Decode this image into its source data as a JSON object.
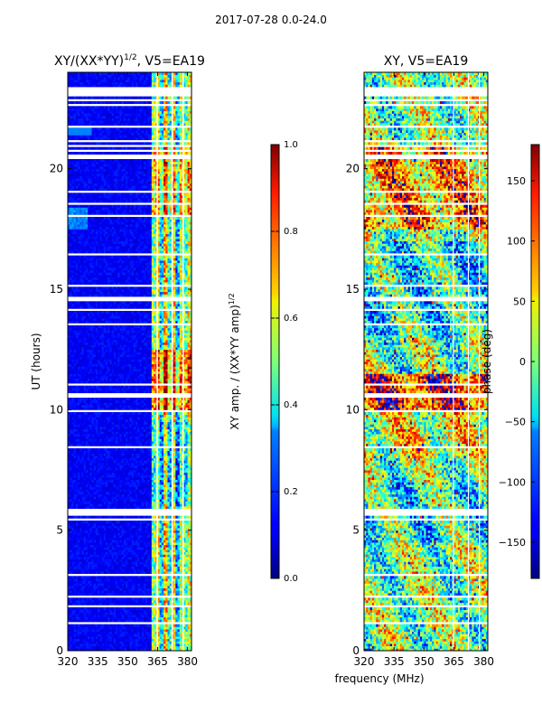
{
  "suptitle": "2017-07-28 0.0-24.0",
  "xlabel_common": "frequency (MHz)",
  "chart_data": [
    {
      "type": "heatmap",
      "title": "XY/(XX*YY)",
      "title_exp": "1/2",
      "title_suffix": ", V5=EA19",
      "xlabel": "",
      "ylabel": "UT (hours)",
      "xlim": [
        320,
        382
      ],
      "ylim": [
        0,
        24
      ],
      "xticks": [
        320,
        335,
        350,
        365,
        380
      ],
      "yticks": [
        0,
        5,
        10,
        15,
        20
      ],
      "colorbar": {
        "label": "XY amp. / (XX*YY amp)",
        "label_exp": "1/2",
        "range": [
          0.0,
          1.0
        ],
        "ticks": [
          "0.0",
          "0.2",
          "0.4",
          "0.6",
          "0.8",
          "1.0"
        ],
        "tick_values": [
          0.0,
          0.2,
          0.4,
          0.6,
          0.8,
          1.0
        ],
        "colormap": "jet"
      }
    },
    {
      "type": "heatmap",
      "title": "XY, V5=EA19",
      "xlabel": "",
      "ylabel": "",
      "xlim": [
        320,
        382
      ],
      "ylim": [
        0,
        24
      ],
      "xticks": [
        320,
        335,
        350,
        365,
        380
      ],
      "yticks": [
        0,
        5,
        10,
        15,
        20
      ],
      "colorbar": {
        "label": "phase (deg)",
        "range": [
          -180,
          180
        ],
        "ticks": [
          "−150",
          "−100",
          "−50",
          "0",
          "50",
          "100",
          "150"
        ],
        "tick_values": [
          -150,
          -100,
          -50,
          0,
          50,
          100,
          150
        ],
        "colormap": "jet"
      }
    }
  ]
}
